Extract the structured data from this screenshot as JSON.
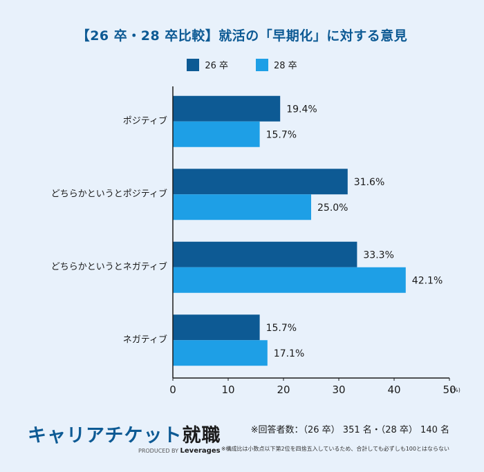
{
  "title": "【26 卒・28 卒比較】就活の「早期化」に対する意見",
  "legend": [
    {
      "label": "26 卒",
      "color": "#0d5a94"
    },
    {
      "label": "28 卒",
      "color": "#1e9fe6"
    }
  ],
  "chart_data": {
    "type": "bar",
    "orientation": "horizontal",
    "categories": [
      "ポジティブ",
      "どちらかというとポジティブ",
      "どちらかというとネガティブ",
      "ネガティブ"
    ],
    "series": [
      {
        "name": "26 卒",
        "values": [
          19.4,
          31.6,
          33.3,
          15.7
        ],
        "color": "#0d5a94"
      },
      {
        "name": "28 卒",
        "values": [
          15.7,
          25.0,
          42.1,
          17.1
        ],
        "color": "#1e9fe6"
      }
    ],
    "value_labels": [
      [
        "19.4%",
        "31.6%",
        "33.3%",
        "15.7%"
      ],
      [
        "15.7%",
        "25.0%",
        "42.1%",
        "17.1%"
      ]
    ],
    "xlim": [
      0,
      50
    ],
    "xticks": [
      "0",
      "10",
      "20",
      "30",
      "40",
      "50"
    ],
    "xunit": "(%)",
    "legend_position": "top-center",
    "grid": false
  },
  "footer": {
    "logo_main": "キャリアチケット",
    "logo_kanji": "就職",
    "produced_by": "PRODUCED BY",
    "produced_brand": "Leverages",
    "respondents": "※回答者数：（26 卒） 351 名・（28 卒） 140 名",
    "rounding_note": "※構成比は小数点以下第2位を四捨五入しているため、合計しても必ずしも100とはならない"
  }
}
